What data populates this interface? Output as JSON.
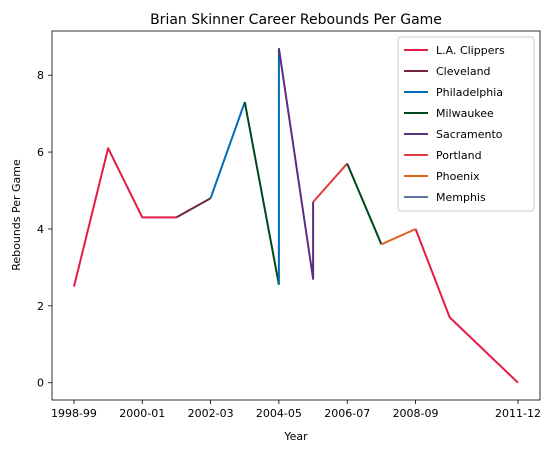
{
  "chart_data": {
    "type": "line",
    "title": "Brian Skinner Career Rebounds Per Game",
    "xlabel": "Year",
    "ylabel": "Rebounds Per Game",
    "x_categories": [
      "1998-99",
      "1999-00",
      "2000-01",
      "2001-02",
      "2002-03",
      "2003-04",
      "2004-05",
      "2005-06",
      "2006-07",
      "2007-08",
      "2008-09",
      "2009-10",
      "2010-11",
      "2011-12"
    ],
    "x_tick_labels": [
      "1998-99",
      "2000-01",
      "2002-03",
      "2004-05",
      "2006-07",
      "2008-09",
      "2011-12"
    ],
    "y_ticks": [
      0,
      2,
      4,
      6,
      8
    ],
    "ylim": [
      -0.45,
      9.15
    ],
    "legend_position": "top-right",
    "series": [
      {
        "name": "L.A. Clippers",
        "color": "#e31c47",
        "points": [
          [
            "1998-99",
            2.5
          ],
          [
            "1999-00",
            6.1
          ],
          [
            "2000-01",
            4.3
          ],
          [
            "2001-02",
            4.3
          ]
        ]
      },
      {
        "name": "Cleveland",
        "color": "#6f263d",
        "points": [
          [
            "2001-02",
            4.3
          ],
          [
            "2002-03",
            4.8
          ]
        ]
      },
      {
        "name": "Philadelphia",
        "color": "#006bb6",
        "points": [
          [
            "2002-03",
            4.8
          ],
          [
            "2003-04",
            7.3
          ]
        ]
      },
      {
        "name": "Milwaukee",
        "color": "#00471b",
        "points": [
          [
            "2003-04",
            7.3
          ],
          [
            "2004-05",
            2.55
          ]
        ]
      },
      {
        "name": "Philadelphia",
        "color": "#006bb6",
        "points": [
          [
            "2004-05",
            2.55
          ],
          [
            "2004-05",
            8.7
          ]
        ]
      },
      {
        "name": "Sacramento",
        "color": "#5a2d81",
        "points": [
          [
            "2004-05",
            8.7
          ],
          [
            "2005-06",
            2.7
          ],
          [
            "2005-06",
            4.7
          ]
        ]
      },
      {
        "name": "Portland",
        "color": "#e03a3e",
        "points": [
          [
            "2005-06",
            4.7
          ],
          [
            "2006-07",
            5.7
          ]
        ]
      },
      {
        "name": "Milwaukee",
        "color": "#00471b",
        "points": [
          [
            "2006-07",
            5.7
          ],
          [
            "2007-08",
            3.6
          ]
        ]
      },
      {
        "name": "Phoenix",
        "color": "#e56020",
        "points": [
          [
            "2007-08",
            3.6
          ],
          [
            "2008-09",
            4.0
          ]
        ]
      },
      {
        "name": "L.A. Clippers",
        "color": "#e31c47",
        "points": [
          [
            "2008-09",
            4.0
          ],
          [
            "2009-10",
            1.7
          ],
          [
            "2011-12",
            0.0
          ]
        ]
      }
    ],
    "legend": [
      {
        "name": "L.A. Clippers",
        "color": "#e31c47"
      },
      {
        "name": "Cleveland",
        "color": "#6f263d"
      },
      {
        "name": "Philadelphia",
        "color": "#006bb6"
      },
      {
        "name": "Milwaukee",
        "color": "#00471b"
      },
      {
        "name": "Sacramento",
        "color": "#5a2d81"
      },
      {
        "name": "Portland",
        "color": "#e03a3e"
      },
      {
        "name": "Phoenix",
        "color": "#e56020"
      },
      {
        "name": "Memphis",
        "color": "#5d76a9"
      }
    ]
  }
}
